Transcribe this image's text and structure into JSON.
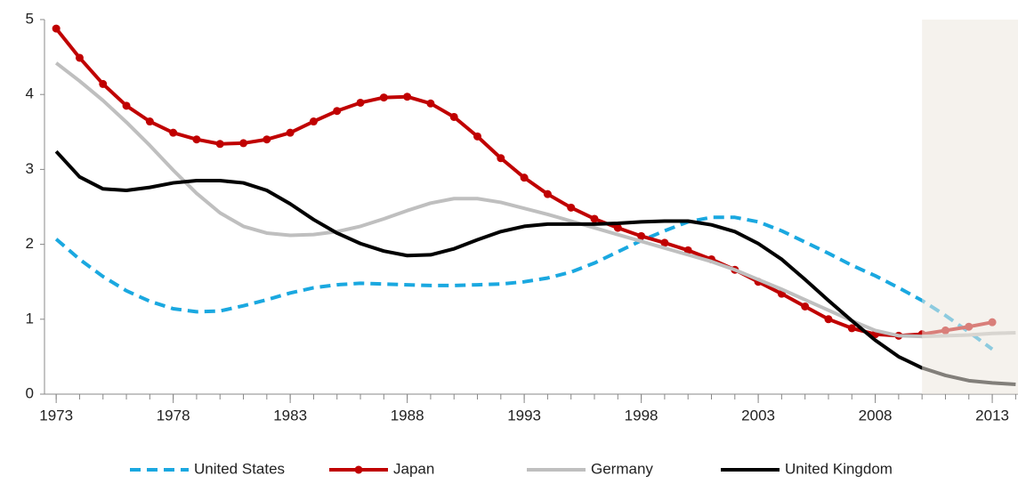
{
  "chart_data": {
    "type": "line",
    "x": [
      1973,
      1974,
      1975,
      1976,
      1977,
      1978,
      1979,
      1980,
      1981,
      1982,
      1983,
      1984,
      1985,
      1986,
      1987,
      1988,
      1989,
      1990,
      1991,
      1992,
      1993,
      1994,
      1995,
      1996,
      1997,
      1998,
      1999,
      2000,
      2001,
      2002,
      2003,
      2004,
      2005,
      2006,
      2007,
      2008,
      2009,
      2010,
      2011,
      2012,
      2013,
      2014
    ],
    "series": [
      {
        "name": "United States",
        "color": "#1aa8e0",
        "dash": true,
        "marker": false,
        "values": [
          2.07,
          1.8,
          1.57,
          1.38,
          1.24,
          1.14,
          1.1,
          1.11,
          1.18,
          1.26,
          1.35,
          1.42,
          1.46,
          1.48,
          1.47,
          1.46,
          1.45,
          1.45,
          1.46,
          1.47,
          1.5,
          1.55,
          1.63,
          1.75,
          1.9,
          2.05,
          2.18,
          2.3,
          2.36,
          2.36,
          2.3,
          2.18,
          2.03,
          1.88,
          1.72,
          1.58,
          1.42,
          1.25,
          1.05,
          0.83,
          0.6,
          null
        ]
      },
      {
        "name": "Japan",
        "color": "#c00000",
        "dash": false,
        "marker": true,
        "values": [
          4.88,
          4.49,
          4.14,
          3.85,
          3.64,
          3.49,
          3.4,
          3.34,
          3.35,
          3.4,
          3.49,
          3.64,
          3.78,
          3.89,
          3.96,
          3.97,
          3.88,
          3.7,
          3.44,
          3.15,
          2.89,
          2.67,
          2.49,
          2.34,
          2.22,
          2.11,
          2.02,
          1.92,
          1.8,
          1.66,
          1.5,
          1.34,
          1.17,
          1.0,
          0.88,
          0.8,
          0.78,
          0.8,
          0.85,
          0.9,
          0.96,
          null
        ]
      },
      {
        "name": "Germany",
        "color": "#bfbfbf",
        "dash": false,
        "marker": false,
        "values": [
          4.42,
          4.18,
          3.92,
          3.63,
          3.32,
          2.99,
          2.68,
          2.42,
          2.24,
          2.15,
          2.12,
          2.13,
          2.17,
          2.24,
          2.34,
          2.45,
          2.55,
          2.61,
          2.61,
          2.56,
          2.48,
          2.4,
          2.31,
          2.22,
          2.13,
          2.04,
          1.95,
          1.86,
          1.77,
          1.66,
          1.53,
          1.4,
          1.26,
          1.12,
          0.98,
          0.85,
          0.78,
          0.77,
          0.78,
          0.79,
          0.81,
          0.82
        ]
      },
      {
        "name": "United Kingdom",
        "color": "#000000",
        "dash": false,
        "marker": false,
        "values": [
          3.24,
          2.9,
          2.74,
          2.72,
          2.76,
          2.82,
          2.85,
          2.85,
          2.82,
          2.72,
          2.54,
          2.33,
          2.15,
          2.01,
          1.91,
          1.85,
          1.86,
          1.94,
          2.06,
          2.17,
          2.24,
          2.27,
          2.27,
          2.27,
          2.28,
          2.3,
          2.31,
          2.31,
          2.26,
          2.17,
          2.01,
          1.8,
          1.53,
          1.25,
          0.98,
          0.72,
          0.5,
          0.35,
          0.25,
          0.18,
          0.15,
          0.13
        ]
      }
    ],
    "xlim": [
      1972.5,
      2014.1
    ],
    "xticks": [
      1973,
      1978,
      1983,
      1988,
      1993,
      1998,
      2003,
      2008,
      2013
    ],
    "ylim": [
      0,
      5
    ],
    "yticks": [
      0,
      1,
      2,
      3,
      4,
      5
    ],
    "shade_from": 2010,
    "shade_color": "#ece8df",
    "legend": "bottom"
  }
}
